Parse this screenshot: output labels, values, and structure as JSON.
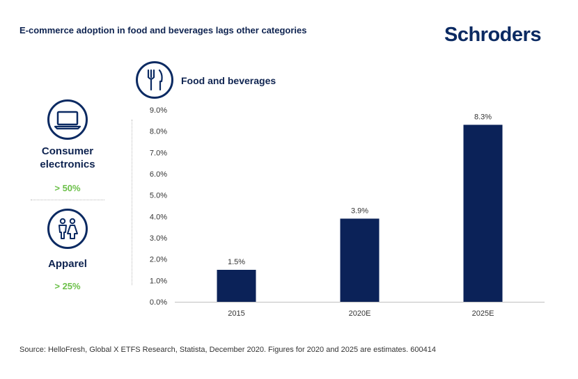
{
  "header": {
    "title": "E-commerce adoption in food and beverages lags other categories",
    "brand": "Schroders"
  },
  "sidebar": {
    "categories": [
      {
        "label_line1": "Consumer",
        "label_line2": "electronics",
        "value": "> 50%",
        "icon": "laptop-icon"
      },
      {
        "label": "Apparel",
        "value": "> 25%",
        "icon": "people-icon"
      }
    ]
  },
  "chart_heading": {
    "label": "Food and beverages",
    "icon": "fork-knife-icon"
  },
  "footer": {
    "source": "Source: HelloFresh, Global X ETFS Research, Statista, December 2020. Figures for 2020 and 2025 are estimates. 600414"
  },
  "colors": {
    "bar": "#0b2258",
    "accent_green": "#6cc04a",
    "navy": "#0b2a62"
  },
  "chart_data": {
    "type": "bar",
    "categories": [
      "2015",
      "2020E",
      "2025E"
    ],
    "values": [
      1.5,
      3.9,
      8.3
    ],
    "data_labels": [
      "1.5%",
      "3.9%",
      "8.3%"
    ],
    "yticks": [
      "0.0%",
      "1.0%",
      "2.0%",
      "3.0%",
      "4.0%",
      "5.0%",
      "6.0%",
      "7.0%",
      "8.0%",
      "9.0%"
    ],
    "ylim": [
      0,
      9
    ],
    "grid": false
  }
}
